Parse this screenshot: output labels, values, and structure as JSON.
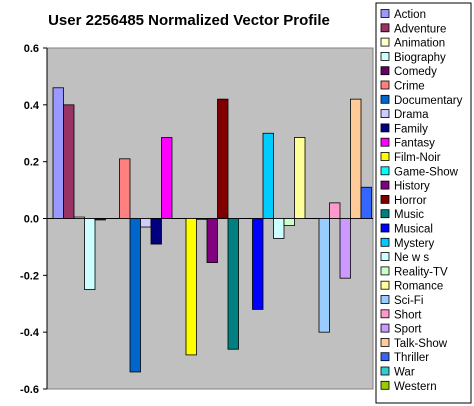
{
  "chart_data": {
    "type": "bar",
    "title": "User 2256485 Normalized Vector Profile",
    "xlabel": "",
    "ylabel": "",
    "ylim": [
      -0.6,
      0.6
    ],
    "yticks": [
      "0.6",
      "0.4",
      "0.2",
      "0.0",
      "-0.2",
      "-0.4",
      "-0.6"
    ],
    "grid": "none",
    "plot_background": "#c0c0c0",
    "legend_placement": "right",
    "categories": [
      "Action",
      "Adventure",
      "Animation",
      "Biography",
      "Comedy",
      "Crime",
      "Documentary",
      "Drama",
      "Family",
      "Fantasy",
      "Film-Noir",
      "Game-Show",
      "History",
      "Horror",
      "Music",
      "Musical",
      "Mystery",
      "News",
      "Reality-TV",
      "Romance",
      "Sci-Fi",
      "Short",
      "Sport",
      "Talk-Show",
      "Thriller",
      "War",
      "Western"
    ],
    "legend_labels": [
      "Action",
      "Adventure",
      "Animation",
      "Biography",
      "Comedy",
      "Crime",
      "Documentary",
      "Drama",
      "Family",
      "Fantasy",
      "Film-Noir",
      "Game-Show",
      "History",
      "Horror",
      "Music",
      "Musical",
      "Mystery",
      "Ne w s",
      "Reality-TV",
      "Romance",
      "Sci-Fi",
      "Short",
      "Sport",
      "Talk-Show",
      "Thriller",
      "War",
      "Western"
    ],
    "values": [
      0.46,
      0.4,
      0.005,
      -0.25,
      -0.005,
      0.21,
      -0.54,
      -0.03,
      -0.09,
      0.285,
      -0.48,
      0.0,
      -0.155,
      0.42,
      -0.46,
      -0.32,
      0.3,
      -0.07,
      -0.025,
      0.285,
      -0.4,
      0.055,
      -0.21,
      0.42,
      0.11,
      0.16,
      0.0
    ],
    "bar_values_order_note": "",
    "colors": [
      "#9999ff",
      "#993366",
      "#ffffcc",
      "#ccffff",
      "#660066",
      "#ff8080",
      "#0066cc",
      "#ccccff",
      "#000080",
      "#ff00ff",
      "#ffff00",
      "#00ffff",
      "#800080",
      "#800000",
      "#008080",
      "#0000ff",
      "#00ccff",
      "#ccffff",
      "#ccffcc",
      "#ffff99",
      "#99ccff",
      "#ff99cc",
      "#cc99ff",
      "#ffcc99",
      "#3366ff",
      "#33cccc",
      "#99cc00"
    ]
  }
}
